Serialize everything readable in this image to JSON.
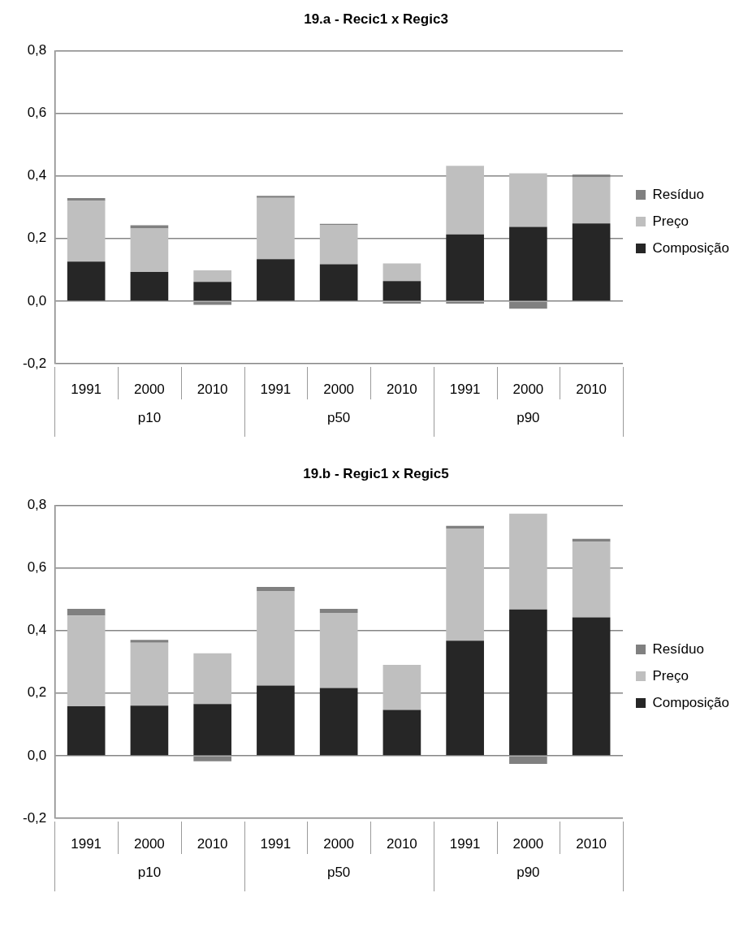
{
  "chart_data": [
    {
      "type": "bar",
      "title": "19.a - Recic1 x Regic3",
      "categories": [
        "1991",
        "2000",
        "2010",
        "1991",
        "2000",
        "2010",
        "1991",
        "2000",
        "2010"
      ],
      "stacked": true,
      "series": [
        {
          "name": "Composição",
          "color": "#262626",
          "values": [
            0.126,
            0.093,
            0.061,
            0.134,
            0.118,
            0.064,
            0.213,
            0.237,
            0.248
          ]
        },
        {
          "name": "Preço",
          "color": "#bfbfbf",
          "values": [
            0.194,
            0.139,
            0.037,
            0.196,
            0.124,
            0.056,
            0.219,
            0.171,
            0.147
          ]
        },
        {
          "name": "Resíduo",
          "color": "#808080",
          "values": [
            0.009,
            0.01,
            -0.012,
            0.006,
            0.005,
            -0.008,
            -0.008,
            -0.024,
            0.009
          ]
        }
      ],
      "ylim": [
        -0.2,
        0.8
      ],
      "yticks": [
        {
          "value": -0.2,
          "label": "-0,2"
        },
        {
          "value": 0,
          "label": "0,0"
        },
        {
          "value": 0.2,
          "label": "0,2"
        },
        {
          "value": 0.4,
          "label": "0,4"
        },
        {
          "value": 0.6,
          "label": "0,6"
        },
        {
          "value": 0.8,
          "label": "0,8"
        }
      ],
      "grid": "y",
      "legend": "right",
      "annotations": [
        "p10",
        "p50",
        "p90"
      ]
    },
    {
      "type": "bar",
      "title": "19.b - Regic1 x Regic5",
      "categories": [
        "1991",
        "2000",
        "2010",
        "1991",
        "2000",
        "2010",
        "1991",
        "2000",
        "2010"
      ],
      "stacked": true,
      "series": [
        {
          "name": "Composição",
          "color": "#262626",
          "values": [
            0.158,
            0.16,
            0.165,
            0.224,
            0.216,
            0.146,
            0.367,
            0.467,
            0.442
          ]
        },
        {
          "name": "Preço",
          "color": "#bfbfbf",
          "values": [
            0.29,
            0.201,
            0.162,
            0.301,
            0.24,
            0.144,
            0.359,
            0.306,
            0.241
          ]
        },
        {
          "name": "Resíduo",
          "color": "#808080",
          "values": [
            0.021,
            0.009,
            -0.018,
            0.014,
            0.013,
            null,
            0.008,
            -0.026,
            0.01
          ]
        }
      ],
      "ylim": [
        -0.2,
        0.8
      ],
      "yticks": [
        {
          "value": -0.2,
          "label": "-0,2"
        },
        {
          "value": 0,
          "label": "0,0"
        },
        {
          "value": 0.2,
          "label": "0,2"
        },
        {
          "value": 0.4,
          "label": "0,4"
        },
        {
          "value": 0.6,
          "label": "0,6"
        },
        {
          "value": 0.8,
          "label": "0,8"
        }
      ],
      "grid": "y",
      "legend": "right",
      "annotations": [
        "p10",
        "p50",
        "p90"
      ]
    }
  ]
}
